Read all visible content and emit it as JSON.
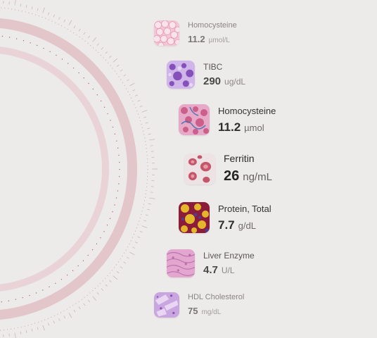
{
  "colors": {
    "background": "#ecebe9",
    "arc_band": "#e3c6ca",
    "arc_outer": "#e9d3d6",
    "arc_dots": "#8a2a3a",
    "tick": "#c9b8ba"
  },
  "markers": [
    {
      "name": "Homocysteine",
      "value": "11.2",
      "unit": "µmol/L",
      "image_icon": "tissue-pink-icon"
    },
    {
      "name": "TIBC",
      "value": "290",
      "unit": "ug/dL",
      "image_icon": "cells-purple-icon"
    },
    {
      "name": "Homocysteine",
      "value": "11.2",
      "unit": "µmol",
      "image_icon": "tissue-magenta-icon"
    },
    {
      "name": "Ferritin",
      "value": "26",
      "unit": "ng/mL",
      "image_icon": "red-blood-cells-icon"
    },
    {
      "name": "Protein, Total",
      "value": "7.7",
      "unit": "g/dL",
      "image_icon": "tissue-yellow-icon"
    },
    {
      "name": "Liver Enzyme",
      "value": "4.7",
      "unit": "U/L",
      "image_icon": "tissue-lavender-icon"
    },
    {
      "name": "HDL Cholesterol",
      "value": "75",
      "unit": "mg/dL",
      "image_icon": "tissue-violet-icon"
    }
  ]
}
